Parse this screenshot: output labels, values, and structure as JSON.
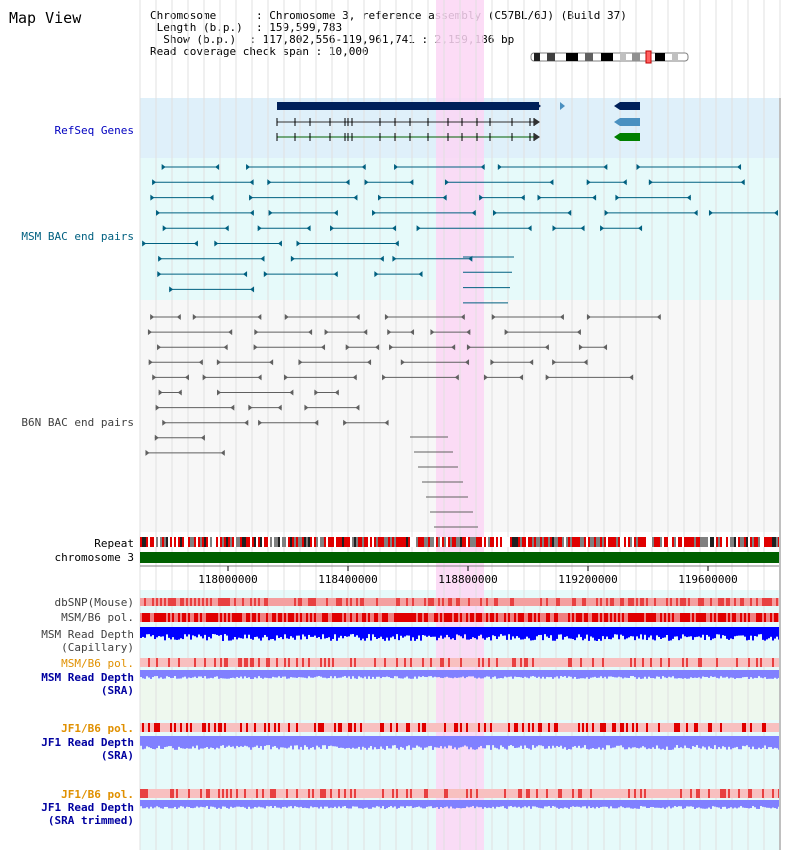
{
  "page": {
    "title": "Map View"
  },
  "info": {
    "chromosome_key": "Chromosome",
    "chromosome_val": "Chromosome 3, reference assembly (C57BL/6J) (Build 37)",
    "length_key": "Length (b.p.)",
    "length_val": "159,599,783",
    "show_key": "Show (b.p.)",
    "show_val": "117,802,556-119,961,741 : 2,159,186 bp",
    "coverage_key": "Read coverage check span",
    "coverage_val": "10,000"
  },
  "tracks": {
    "refseq": "RefSeq Genes",
    "msm_bac": "MSM BAC end pairs",
    "b6n_bac": "B6N BAC end pairs",
    "repeat": "Repeat",
    "chromosome": "chromosome 3",
    "dbsnp": "dbSNP(Mouse)",
    "msm_b6_pol": "MSM/B6 pol.",
    "msm_read_depth_1": "MSM Read Depth",
    "msm_read_depth_1_sub": "(Capillary)",
    "msm_b6_pol_2": "MSM/B6 pol.",
    "msm_read_depth_2": "MSM Read Depth",
    "msm_read_depth_2_sub": "(SRA)",
    "jf1_b6_pol_1": "JF1/B6 pol.",
    "jf1_read_depth_1": "JF1 Read Depth",
    "jf1_read_depth_1_sub": "(SRA)",
    "jf1_b6_pol_2": "JF1/B6 pol.",
    "jf1_read_depth_2": "JF1 Read Depth",
    "jf1_read_depth_2_sub": "(SRA trimmed)"
  },
  "axis": {
    "ticks": [
      "118000000",
      "118400000",
      "118800000",
      "119200000",
      "119600000"
    ]
  },
  "colors": {
    "refseq_bg": "#dff0fa",
    "msm_bg": "#e6fafa",
    "b6n_bg": "#f5f5f5",
    "highlight": "#fbd6f4",
    "refseq_label": "#0000c0",
    "msm_label": "#006080",
    "b6n_label": "#404040",
    "orange_label": "#e09000",
    "blue_label": "#0000a0",
    "repeat_red": "#e00000",
    "chromosome_green": "#006000",
    "depth_blue": "#0000ff",
    "depth_light": "#8080ff"
  }
}
